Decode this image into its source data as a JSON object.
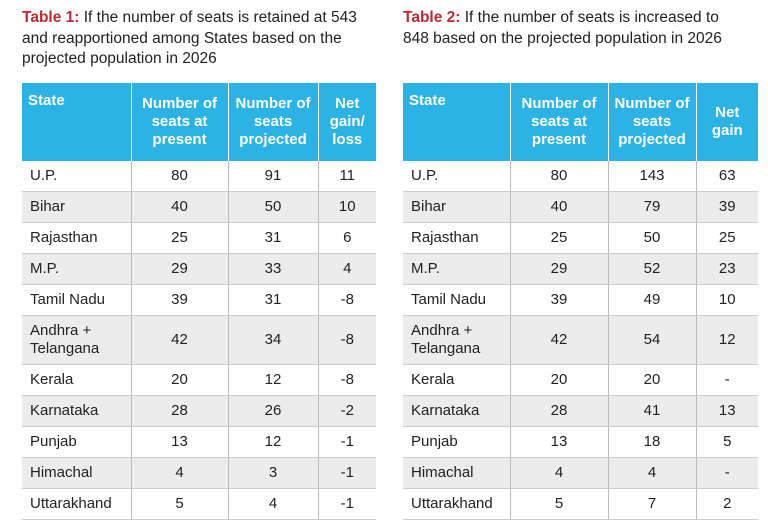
{
  "tables": [
    {
      "title": {
        "label": "Table 1:",
        "text": "If the number of seats is retained at 543 and reapportioned among States based on the projected population in 2026"
      },
      "header": [
        "State",
        "Number of seats at present",
        "Number of seats projected",
        "Net gain/ loss"
      ],
      "rows": [
        [
          "U.P.",
          80,
          91,
          11
        ],
        [
          "Bihar",
          40,
          50,
          10
        ],
        [
          "Rajasthan",
          25,
          31,
          6
        ],
        [
          "M.P.",
          29,
          33,
          4
        ],
        [
          "Tamil Nadu",
          39,
          31,
          -8
        ],
        [
          "Andhra + Telangana",
          42,
          34,
          -8
        ],
        [
          "Kerala",
          20,
          12,
          -8
        ],
        [
          "Karnataka",
          28,
          26,
          -2
        ],
        [
          "Punjab",
          13,
          12,
          -1
        ],
        [
          "Himachal",
          4,
          3,
          -1
        ],
        [
          "Uttarakhand",
          5,
          4,
          -1
        ]
      ]
    },
    {
      "title": {
        "label": "Table 2:",
        "text": "If the number of seats is increased to 848 based on the projected population in 2026"
      },
      "header": [
        "State",
        "Number of seats at present",
        "Number of seats projected",
        "Net gain"
      ],
      "rows": [
        [
          "U.P.",
          80,
          143,
          63
        ],
        [
          "Bihar",
          40,
          79,
          39
        ],
        [
          "Rajasthan",
          25,
          50,
          25
        ],
        [
          "M.P.",
          29,
          52,
          23
        ],
        [
          "Tamil Nadu",
          39,
          49,
          10
        ],
        [
          "Andhra + Telangana",
          42,
          54,
          12
        ],
        [
          "Kerala",
          20,
          20,
          "-"
        ],
        [
          "Karnataka",
          28,
          41,
          13
        ],
        [
          "Punjab",
          13,
          18,
          5
        ],
        [
          "Himachal",
          4,
          4,
          "-"
        ],
        [
          "Uttarakhand",
          5,
          7,
          2
        ]
      ]
    }
  ]
}
